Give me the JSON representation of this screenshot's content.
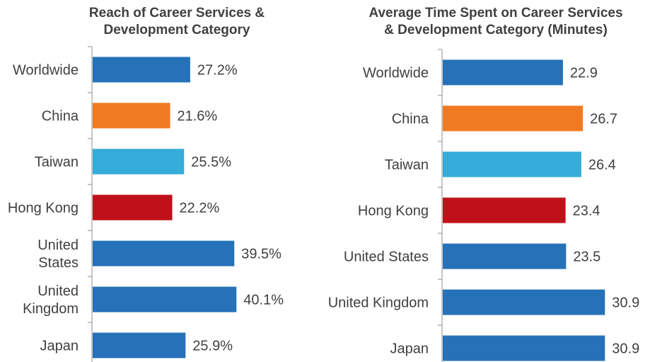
{
  "chart_data": [
    {
      "type": "bar",
      "orientation": "horizontal",
      "title": "Reach of Career Services & Development Category",
      "title_lines": [
        "Reach of Career Services &",
        "Development Category"
      ],
      "categories": [
        "Worldwide",
        "China",
        "Taiwan",
        "Hong Kong",
        "United States",
        "United Kingdom",
        "Japan"
      ],
      "category_lines": [
        [
          "Worldwide"
        ],
        [
          "China"
        ],
        [
          "Taiwan"
        ],
        [
          "Hong Kong"
        ],
        [
          "United",
          "States"
        ],
        [
          "United",
          "Kingdom"
        ],
        [
          "Japan"
        ]
      ],
      "values": [
        27.2,
        21.6,
        25.5,
        22.2,
        39.5,
        40.1,
        25.9
      ],
      "labels": [
        "27.2%",
        "21.6%",
        "25.5%",
        "22.2%",
        "39.5%",
        "40.1%",
        "25.9%"
      ],
      "colors": [
        "#2672b8",
        "#f07a22",
        "#35acd9",
        "#c0111b",
        "#2672b8",
        "#2672b8",
        "#2672b8"
      ],
      "xlim": [
        0,
        45
      ],
      "grid": false
    },
    {
      "type": "bar",
      "orientation": "horizontal",
      "title": "Average Time Spent on Career Services & Development Category (Minutes)",
      "title_lines": [
        "Average Time Spent on Career Services",
        "& Development Category (Minutes)"
      ],
      "categories": [
        "Worldwide",
        "China",
        "Taiwan",
        "Hong Kong",
        "United States",
        "United Kingdom",
        "Japan"
      ],
      "category_lines": [
        [
          "Worldwide"
        ],
        [
          "China"
        ],
        [
          "Taiwan"
        ],
        [
          "Hong Kong"
        ],
        [
          "United States"
        ],
        [
          "United Kingdom"
        ],
        [
          "Japan"
        ]
      ],
      "values": [
        22.9,
        26.7,
        26.4,
        23.4,
        23.5,
        30.9,
        30.9
      ],
      "labels": [
        "22.9",
        "26.7",
        "26.4",
        "23.4",
        "23.5",
        "30.9",
        "30.9"
      ],
      "colors": [
        "#2672b8",
        "#f07a22",
        "#35acd9",
        "#c0111b",
        "#2672b8",
        "#2672b8",
        "#2672b8"
      ],
      "xlim": [
        0,
        35
      ],
      "grid": false
    }
  ]
}
